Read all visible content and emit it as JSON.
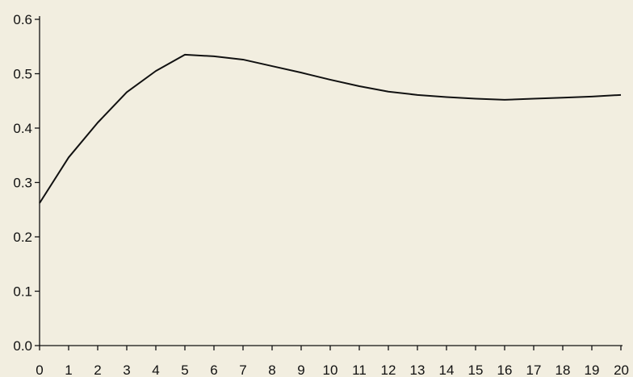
{
  "colors": {
    "background": "#f2eee0",
    "axis": "#111111",
    "line": "#111111",
    "text": "#111111"
  },
  "chart_data": {
    "type": "line",
    "title": "",
    "xlabel": "",
    "ylabel": "",
    "grid": false,
    "legend": "none",
    "xlim": [
      0,
      20
    ],
    "ylim": [
      0,
      0.6
    ],
    "x_ticks": [
      0,
      1,
      2,
      3,
      4,
      5,
      6,
      7,
      8,
      9,
      10,
      11,
      12,
      13,
      14,
      15,
      16,
      17,
      18,
      19,
      20
    ],
    "x_tick_labels": [
      "0",
      "1",
      "2",
      "3",
      "4",
      "5",
      "6",
      "7",
      "8",
      "9",
      "10",
      "11",
      "12",
      "13",
      "14",
      "15",
      "16",
      "17",
      "18",
      "19",
      "20"
    ],
    "y_ticks": [
      0,
      0.1,
      0.2,
      0.3,
      0.4,
      0.5,
      0.6
    ],
    "y_tick_labels": [
      "0.0",
      "0.1",
      "0.2",
      "0.3",
      "0.4",
      "0.5",
      "0.6"
    ],
    "series": [
      {
        "x": [
          0,
          1,
          2,
          3,
          4,
          5,
          6,
          7,
          8,
          9,
          10,
          11,
          12,
          13,
          14,
          15,
          16,
          17,
          18,
          19,
          20
        ],
        "values": [
          0.262,
          0.346,
          0.41,
          0.466,
          0.505,
          0.535,
          0.532,
          0.526,
          0.514,
          0.502,
          0.489,
          0.477,
          0.467,
          0.461,
          0.457,
          0.454,
          0.452,
          0.454,
          0.456,
          0.458,
          0.461
        ]
      }
    ]
  }
}
